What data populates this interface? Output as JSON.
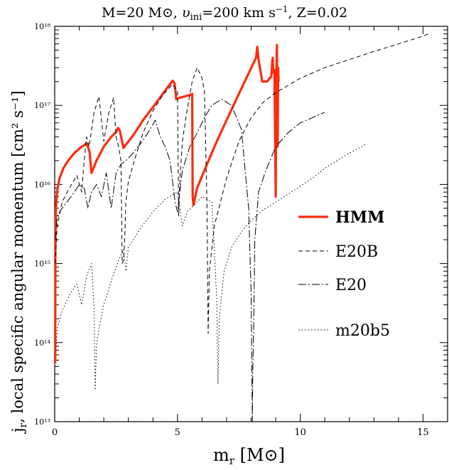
{
  "chart_data": {
    "type": "line",
    "title": "M=20 M⊙, υini=200 km s⁻¹, Z=0.02",
    "title_parts": {
      "mass": "M=20 M",
      "sun": "⊙",
      "v": "υ",
      "v_sub": "ini",
      "v_val": "=200 km s",
      "v_exp": "−1",
      "z": ", Z=0.02"
    },
    "xlabel": "m",
    "xlabel_sub": "r",
    "xlabel_unit": "[M⊙]",
    "ylabel": "j",
    "ylabel_sub": "r",
    "ylabel_text": ", local specific angular momentum [cm² s⁻¹]",
    "x_scale": "linear",
    "y_scale": "log",
    "xlim": [
      0,
      16
    ],
    "ylim": [
      10000000000000.0,
      1e+18
    ],
    "x_ticks": [
      0,
      5,
      10,
      15
    ],
    "x_tick_labels": [
      "0",
      "5",
      "10",
      "15"
    ],
    "y_ticks": [
      10000000000000.0,
      100000000000000.0,
      1000000000000000.0,
      1e+16,
      1e+17,
      1e+18
    ],
    "y_tick_labels": [
      "10¹³",
      "10¹⁴",
      "10¹⁵",
      "10¹⁶",
      "10¹⁷",
      "10¹⁸"
    ],
    "legend_position": "right",
    "series": [
      {
        "name": "HMM",
        "color": "#ff2a0f",
        "style": "solid-thick",
        "x": [
          0.02,
          0.03,
          0.05,
          0.08,
          0.12,
          0.2,
          0.35,
          0.55,
          0.8,
          1.1,
          1.3,
          1.42,
          1.5,
          1.7,
          2.0,
          2.3,
          2.5,
          2.58,
          2.65,
          2.72,
          2.8,
          3.2,
          3.6,
          4.0,
          4.4,
          4.8,
          4.88,
          4.95,
          5.1,
          5.3,
          5.5,
          5.6,
          5.62,
          5.65,
          5.8,
          6.2,
          6.6,
          7.0,
          7.4,
          7.8,
          8.2,
          8.25,
          8.3,
          8.4,
          8.45,
          8.55,
          8.65,
          8.75,
          8.82,
          8.86,
          8.88,
          8.9,
          8.95,
          9.0,
          9.02,
          9.05,
          9.08,
          9.1,
          9.12
        ],
        "y": [
          55000000000000.0,
          2500000000000000.0,
          5000000000000000.0,
          7000000000000000.0,
          9000000000000000.0,
          1.2e+16,
          1.6e+16,
          2e+16,
          2.5e+16,
          3e+16,
          3.3e+16,
          2.6e+16,
          1.4e+16,
          2e+16,
          3e+16,
          4e+16,
          4.6e+16,
          5.2e+16,
          4.8e+16,
          3.8e+16,
          2.9e+16,
          4.2e+16,
          6.5e+16,
          9.5e+16,
          1.4e+17,
          2.05e+17,
          1.9e+17,
          1.2e+17,
          1.25e+17,
          1.3e+17,
          1.35e+17,
          1.4e+17,
          7000000000000000.0,
          5500000000000000.0,
          9000000000000000.0,
          1.8e+16,
          3.5e+16,
          6.5e+16,
          1.2e+17,
          2.2e+17,
          4e+17,
          5.5e+17,
          3.8e+17,
          2.5e+17,
          2e+17,
          2e+17,
          2e+17,
          2.2e+17,
          2.3e+17,
          3.5e+17,
          4e+17,
          2.6e+17,
          2.8e+17,
          7000000000000000.0,
          2e+17,
          5.8e+17,
          3e+16,
          3e+17,
          2e+17
        ]
      },
      {
        "name": "E20B",
        "color": "#000000",
        "style": "dashed",
        "x": [
          0.02,
          0.1,
          0.3,
          0.6,
          0.9,
          1.1,
          1.2,
          1.3,
          1.4,
          1.6,
          1.8,
          2.0,
          2.2,
          2.4,
          2.5,
          2.6,
          2.7,
          2.75,
          2.8,
          2.85,
          2.9,
          3.0,
          3.3,
          3.6,
          4.0,
          4.4,
          4.8,
          5.0,
          5.05,
          5.1,
          5.2,
          5.4,
          5.6,
          5.8,
          6.0,
          6.1,
          6.2,
          6.25,
          6.3,
          6.5,
          7.0,
          7.5,
          8.0,
          8.5,
          9.0,
          10.0,
          11.0,
          12.0,
          13.0,
          14.0,
          15.0,
          15.2
        ],
        "y": [
          1000000000000000.0,
          3000000000000000.0,
          6000000000000000.0,
          9000000000000000.0,
          1.3e+16,
          8000000000000000.0,
          2e+16,
          4e+16,
          3e+16,
          8e+16,
          1.3e+17,
          3.5e+16,
          8e+16,
          1.25e+17,
          4e+16,
          3e+16,
          2e+16,
          1000000000000000.0,
          1100000000000000.0,
          2000000000000000.0,
          6000000000000000.0,
          1.1e+16,
          2.3e+16,
          4.5e+16,
          8.5e+16,
          1.35e+17,
          1.85e+17,
          1.5e+17,
          4000000000000000.0,
          1.2e+16,
          3.5e+16,
          9e+16,
          2e+17,
          3e+17,
          2.2e+17,
          1.5e+17,
          6000000000000000.0,
          130000000000000.0,
          800000000000000.0,
          3000000000000000.0,
          1.2e+16,
          3.5e+16,
          7e+16,
          1.1e+17,
          1.45e+17,
          2.2e+17,
          3e+17,
          3.8e+17,
          4.8e+17,
          6e+17,
          7.5e+17,
          8e+17
        ]
      },
      {
        "name": "E20",
        "color": "#000000",
        "style": "dash-dot",
        "x": [
          0.02,
          0.1,
          0.3,
          0.5,
          0.8,
          1.0,
          1.2,
          1.35,
          1.5,
          1.7,
          1.9,
          2.1,
          2.3,
          2.5,
          2.7,
          2.9,
          3.2,
          3.5,
          3.8,
          4.1,
          4.3,
          4.5,
          4.7,
          4.9,
          5.0,
          5.2,
          5.5,
          5.8,
          6.1,
          6.4,
          6.8,
          7.2,
          7.6,
          7.9,
          8.0,
          8.05,
          8.07,
          8.1,
          8.15,
          8.3,
          8.6,
          9.0,
          9.5,
          10.0,
          10.5,
          11.0
        ],
        "y": [
          2000000000000000.0,
          4000000000000000.0,
          5000000000000000.0,
          6000000000000000.0,
          8000000000000000.0,
          1e+16,
          9000000000000000.0,
          5000000000000000.0,
          8000000000000000.0,
          1e+16,
          7000000000000000.0,
          1.4e+16,
          5000000000000000.0,
          1.4e+16,
          1.8e+16,
          2e+16,
          2.5e+16,
          3.3e+16,
          4.5e+16,
          6.5e+16,
          4e+16,
          3e+16,
          2e+16,
          6000000000000000.0,
          4500000000000000.0,
          1.5e+16,
          3e+16,
          4.5e+16,
          7e+16,
          1e+17,
          1.2e+17,
          1e+17,
          5e+16,
          5000000000000000.0,
          400000000000000.0,
          10000000000000.0,
          50000000000000.0,
          150000000000000.0,
          2000000000000000.0,
          8000000000000000.0,
          1.5e+16,
          3e+16,
          4.5e+16,
          6e+16,
          7e+16,
          8.2e+16
        ]
      },
      {
        "name": "m20b5",
        "color": "#000000",
        "style": "dotted",
        "x": [
          0.05,
          0.1,
          0.3,
          0.6,
          0.9,
          1.1,
          1.3,
          1.5,
          1.6,
          1.65,
          1.7,
          1.8,
          2.0,
          2.3,
          2.6,
          2.8,
          2.9,
          3.0,
          3.5,
          4.0,
          4.5,
          5.0,
          5.2,
          5.4,
          6.0,
          6.4,
          6.6,
          6.65,
          6.7,
          6.9,
          7.2,
          7.6,
          8.0,
          8.5,
          9.0,
          9.5,
          10.0,
          10.5,
          11.0,
          11.5,
          12.0,
          12.5,
          12.7
        ],
        "y": [
          80000000000000.0,
          150000000000000.0,
          250000000000000.0,
          400000000000000.0,
          550000000000000.0,
          300000000000000.0,
          700000000000000.0,
          1000000000000000.0,
          300000000000000.0,
          25000000000000.0,
          90000000000000.0,
          150000000000000.0,
          300000000000000.0,
          600000000000000.0,
          1100000000000000.0,
          1500000000000000.0,
          800000000000000.0,
          1600000000000000.0,
          2800000000000000.0,
          4500000000000000.0,
          6500000000000000.0,
          8000000000000000.0,
          3000000000000000.0,
          4500000000000000.0,
          7000000000000000.0,
          6000000000000000.0,
          350000000000000.0,
          30000000000000.0,
          200000000000000.0,
          800000000000000.0,
          1600000000000000.0,
          2500000000000000.0,
          3500000000000000.0,
          4800000000000000.0,
          6000000000000000.0,
          7500000000000000.0,
          9500000000000000.0,
          1.2e+16,
          1.6e+16,
          2e+16,
          2.5e+16,
          3e+16,
          3.3e+16
        ]
      }
    ]
  }
}
